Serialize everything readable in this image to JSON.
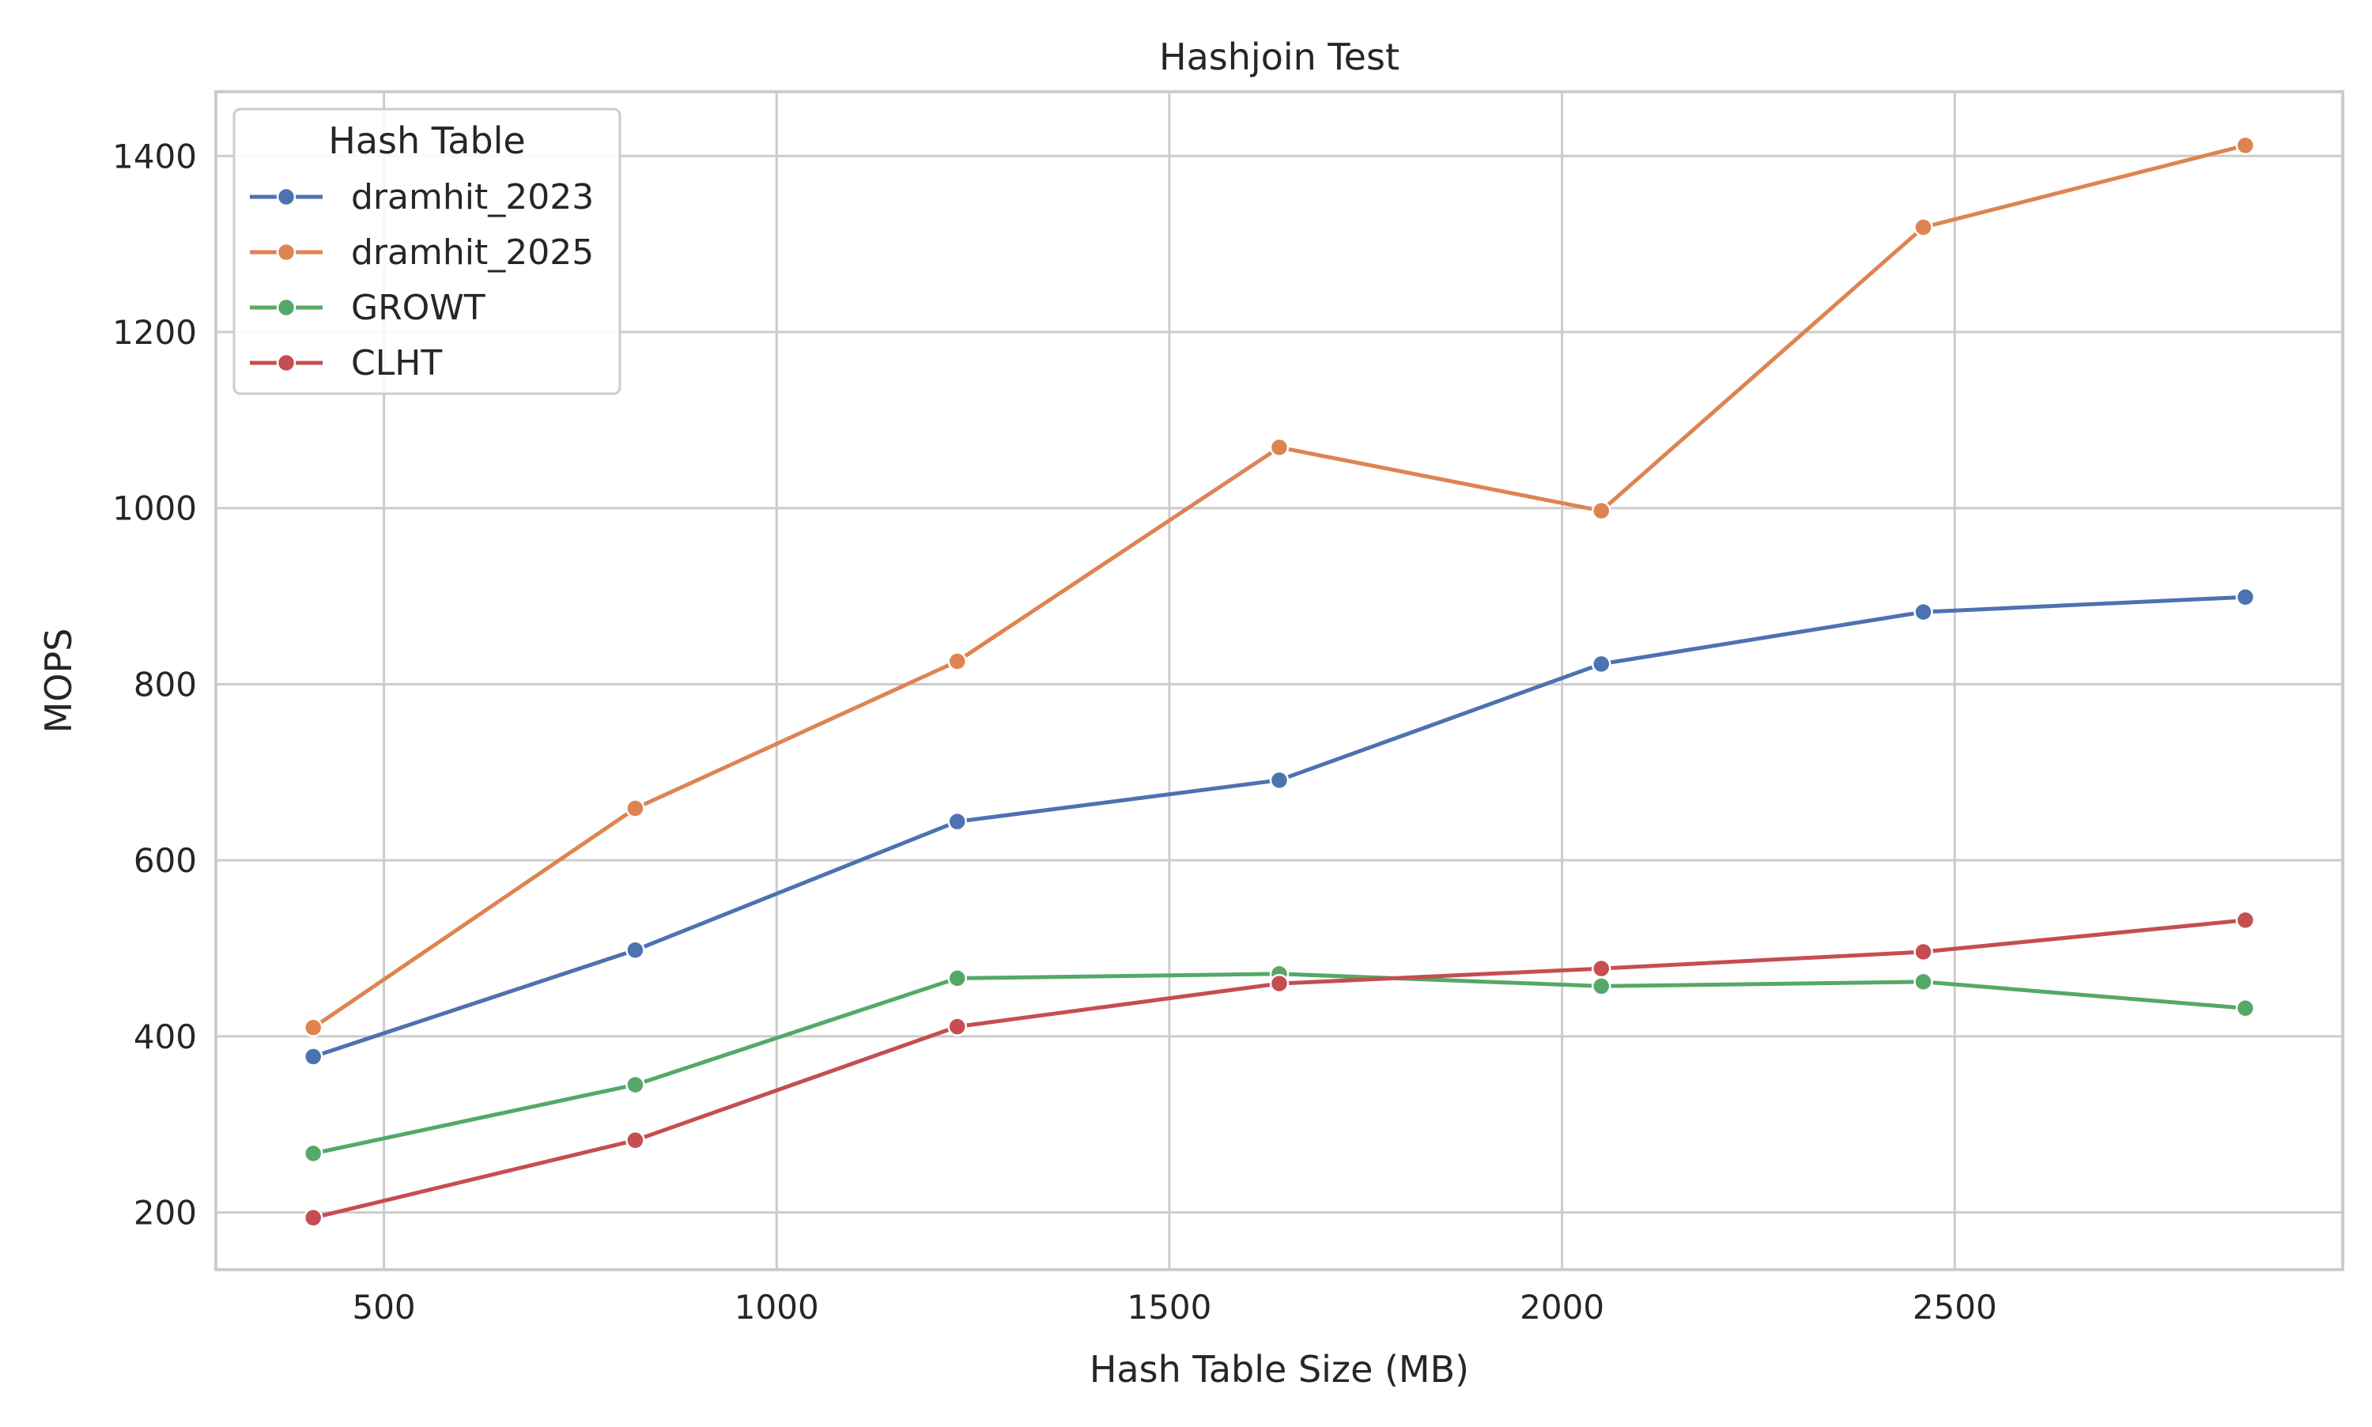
{
  "chart_data": {
    "type": "line",
    "title": "Hashjoin Test",
    "xlabel": "Hash Table Size (MB)",
    "ylabel": "MOPS",
    "x": [
      410,
      820,
      1230,
      1640,
      2050,
      2460,
      2870
    ],
    "xlim": [
      286,
      2994
    ],
    "ylim": [
      135,
      1473
    ],
    "xticks": [
      500,
      1000,
      1500,
      2000,
      2500
    ],
    "xtick_labels": [
      "500",
      "1000",
      "1500",
      "2000",
      "2500"
    ],
    "yticks": [
      200,
      400,
      600,
      800,
      1000,
      1200,
      1400
    ],
    "ytick_labels": [
      "200",
      "400",
      "600",
      "800",
      "1000",
      "1200",
      "1400"
    ],
    "grid": true,
    "legend": {
      "title": "Hash Table",
      "placement": "top-left"
    },
    "series": [
      {
        "name": "dramhit_2023",
        "color": "#4c72b0",
        "values": [
          377,
          498,
          644,
          691,
          823,
          882,
          899
        ]
      },
      {
        "name": "dramhit_2025",
        "color": "#dd8452",
        "values": [
          410,
          659,
          826,
          1069,
          997,
          1319,
          1412
        ]
      },
      {
        "name": "GROWT",
        "color": "#55a868",
        "values": [
          267,
          345,
          466,
          471,
          457,
          462,
          432
        ]
      },
      {
        "name": "CLHT",
        "color": "#c44e52",
        "values": [
          194,
          282,
          411,
          460,
          477,
          496,
          532
        ]
      }
    ]
  }
}
